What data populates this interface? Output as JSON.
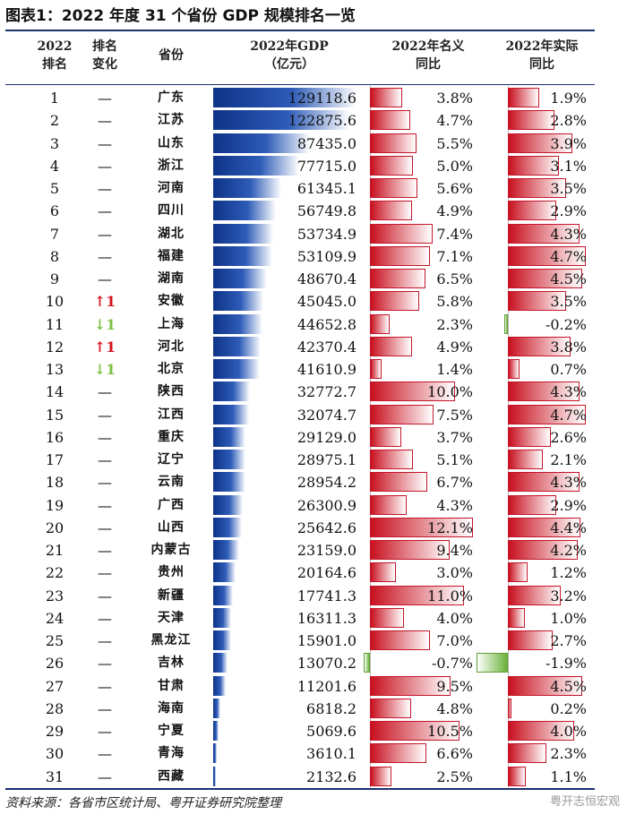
{
  "title": "图表1：2022 年度 31 个省份 GDP 规模排名一览",
  "headers": {
    "rank": [
      "2022",
      "排名"
    ],
    "change": [
      "排名",
      "变化"
    ],
    "province": "省份",
    "gdp": [
      "2022年GDP",
      "（亿元）"
    ],
    "nominal": [
      "2022年名义",
      "同比"
    ],
    "real": [
      "2022年实际",
      "同比"
    ]
  },
  "rows": [
    {
      "rank": "1",
      "change": "—",
      "dir": "none",
      "province": "广东",
      "gdp": "129118.6",
      "gdp_value": 129118.6,
      "nominal": "3.8%",
      "nominal_value": 3.8,
      "real": "1.9%",
      "real_value": 1.9
    },
    {
      "rank": "2",
      "change": "—",
      "dir": "none",
      "province": "江苏",
      "gdp": "122875.6",
      "gdp_value": 122875.6,
      "nominal": "4.7%",
      "nominal_value": 4.7,
      "real": "2.8%",
      "real_value": 2.8
    },
    {
      "rank": "3",
      "change": "—",
      "dir": "none",
      "province": "山东",
      "gdp": "87435.0",
      "gdp_value": 87435.0,
      "nominal": "5.5%",
      "nominal_value": 5.5,
      "real": "3.9%",
      "real_value": 3.9
    },
    {
      "rank": "4",
      "change": "—",
      "dir": "none",
      "province": "浙江",
      "gdp": "77715.0",
      "gdp_value": 77715.0,
      "nominal": "5.0%",
      "nominal_value": 5.0,
      "real": "3.1%",
      "real_value": 3.1
    },
    {
      "rank": "5",
      "change": "—",
      "dir": "none",
      "province": "河南",
      "gdp": "61345.1",
      "gdp_value": 61345.1,
      "nominal": "5.6%",
      "nominal_value": 5.6,
      "real": "3.5%",
      "real_value": 3.5
    },
    {
      "rank": "6",
      "change": "—",
      "dir": "none",
      "province": "四川",
      "gdp": "56749.8",
      "gdp_value": 56749.8,
      "nominal": "4.9%",
      "nominal_value": 4.9,
      "real": "2.9%",
      "real_value": 2.9
    },
    {
      "rank": "7",
      "change": "—",
      "dir": "none",
      "province": "湖北",
      "gdp": "53734.9",
      "gdp_value": 53734.9,
      "nominal": "7.4%",
      "nominal_value": 7.4,
      "real": "4.3%",
      "real_value": 4.3
    },
    {
      "rank": "8",
      "change": "—",
      "dir": "none",
      "province": "福建",
      "gdp": "53109.9",
      "gdp_value": 53109.9,
      "nominal": "7.1%",
      "nominal_value": 7.1,
      "real": "4.7%",
      "real_value": 4.7
    },
    {
      "rank": "9",
      "change": "—",
      "dir": "none",
      "province": "湖南",
      "gdp": "48670.4",
      "gdp_value": 48670.4,
      "nominal": "6.5%",
      "nominal_value": 6.5,
      "real": "4.5%",
      "real_value": 4.5
    },
    {
      "rank": "10",
      "change": "1",
      "dir": "up",
      "province": "安徽",
      "gdp": "45045.0",
      "gdp_value": 45045.0,
      "nominal": "5.8%",
      "nominal_value": 5.8,
      "real": "3.5%",
      "real_value": 3.5
    },
    {
      "rank": "11",
      "change": "1",
      "dir": "down",
      "province": "上海",
      "gdp": "44652.8",
      "gdp_value": 44652.8,
      "nominal": "2.3%",
      "nominal_value": 2.3,
      "real": "-0.2%",
      "real_value": -0.2
    },
    {
      "rank": "12",
      "change": "1",
      "dir": "up",
      "province": "河北",
      "gdp": "42370.4",
      "gdp_value": 42370.4,
      "nominal": "4.9%",
      "nominal_value": 4.9,
      "real": "3.8%",
      "real_value": 3.8
    },
    {
      "rank": "13",
      "change": "1",
      "dir": "down",
      "province": "北京",
      "gdp": "41610.9",
      "gdp_value": 41610.9,
      "nominal": "1.4%",
      "nominal_value": 1.4,
      "real": "0.7%",
      "real_value": 0.7
    },
    {
      "rank": "14",
      "change": "—",
      "dir": "none",
      "province": "陕西",
      "gdp": "32772.7",
      "gdp_value": 32772.7,
      "nominal": "10.0%",
      "nominal_value": 10.0,
      "real": "4.3%",
      "real_value": 4.3
    },
    {
      "rank": "15",
      "change": "—",
      "dir": "none",
      "province": "江西",
      "gdp": "32074.7",
      "gdp_value": 32074.7,
      "nominal": "7.5%",
      "nominal_value": 7.5,
      "real": "4.7%",
      "real_value": 4.7
    },
    {
      "rank": "16",
      "change": "—",
      "dir": "none",
      "province": "重庆",
      "gdp": "29129.0",
      "gdp_value": 29129.0,
      "nominal": "3.7%",
      "nominal_value": 3.7,
      "real": "2.6%",
      "real_value": 2.6
    },
    {
      "rank": "17",
      "change": "—",
      "dir": "none",
      "province": "辽宁",
      "gdp": "28975.1",
      "gdp_value": 28975.1,
      "nominal": "5.1%",
      "nominal_value": 5.1,
      "real": "2.1%",
      "real_value": 2.1
    },
    {
      "rank": "18",
      "change": "—",
      "dir": "none",
      "province": "云南",
      "gdp": "28954.2",
      "gdp_value": 28954.2,
      "nominal": "6.7%",
      "nominal_value": 6.7,
      "real": "4.3%",
      "real_value": 4.3
    },
    {
      "rank": "19",
      "change": "—",
      "dir": "none",
      "province": "广西",
      "gdp": "26300.9",
      "gdp_value": 26300.9,
      "nominal": "4.3%",
      "nominal_value": 4.3,
      "real": "2.9%",
      "real_value": 2.9
    },
    {
      "rank": "20",
      "change": "—",
      "dir": "none",
      "province": "山西",
      "gdp": "25642.6",
      "gdp_value": 25642.6,
      "nominal": "12.1%",
      "nominal_value": 12.1,
      "real": "4.4%",
      "real_value": 4.4
    },
    {
      "rank": "21",
      "change": "—",
      "dir": "none",
      "province": "内蒙古",
      "gdp": "23159.0",
      "gdp_value": 23159.0,
      "nominal": "9.4%",
      "nominal_value": 9.4,
      "real": "4.2%",
      "real_value": 4.2
    },
    {
      "rank": "22",
      "change": "—",
      "dir": "none",
      "province": "贵州",
      "gdp": "20164.6",
      "gdp_value": 20164.6,
      "nominal": "3.0%",
      "nominal_value": 3.0,
      "real": "1.2%",
      "real_value": 1.2
    },
    {
      "rank": "23",
      "change": "—",
      "dir": "none",
      "province": "新疆",
      "gdp": "17741.3",
      "gdp_value": 17741.3,
      "nominal": "11.0%",
      "nominal_value": 11.0,
      "real": "3.2%",
      "real_value": 3.2
    },
    {
      "rank": "24",
      "change": "—",
      "dir": "none",
      "province": "天津",
      "gdp": "16311.3",
      "gdp_value": 16311.3,
      "nominal": "4.0%",
      "nominal_value": 4.0,
      "real": "1.0%",
      "real_value": 1.0
    },
    {
      "rank": "25",
      "change": "—",
      "dir": "none",
      "province": "黑龙江",
      "gdp": "15901.0",
      "gdp_value": 15901.0,
      "nominal": "7.0%",
      "nominal_value": 7.0,
      "real": "2.7%",
      "real_value": 2.7
    },
    {
      "rank": "26",
      "change": "—",
      "dir": "none",
      "province": "吉林",
      "gdp": "13070.2",
      "gdp_value": 13070.2,
      "nominal": "-0.7%",
      "nominal_value": -0.7,
      "real": "-1.9%",
      "real_value": -1.9
    },
    {
      "rank": "27",
      "change": "—",
      "dir": "none",
      "province": "甘肃",
      "gdp": "11201.6",
      "gdp_value": 11201.6,
      "nominal": "9.5%",
      "nominal_value": 9.5,
      "real": "4.5%",
      "real_value": 4.5
    },
    {
      "rank": "28",
      "change": "—",
      "dir": "none",
      "province": "海南",
      "gdp": "6818.2",
      "gdp_value": 6818.2,
      "nominal": "4.8%",
      "nominal_value": 4.8,
      "real": "0.2%",
      "real_value": 0.2
    },
    {
      "rank": "29",
      "change": "—",
      "dir": "none",
      "province": "宁夏",
      "gdp": "5069.6",
      "gdp_value": 5069.6,
      "nominal": "10.5%",
      "nominal_value": 10.5,
      "real": "4.0%",
      "real_value": 4.0
    },
    {
      "rank": "30",
      "change": "—",
      "dir": "none",
      "province": "青海",
      "gdp": "3610.1",
      "gdp_value": 3610.1,
      "nominal": "6.6%",
      "nominal_value": 6.6,
      "real": "2.3%",
      "real_value": 2.3
    },
    {
      "rank": "31",
      "change": "—",
      "dir": "none",
      "province": "西藏",
      "gdp": "2132.6",
      "gdp_value": 2132.6,
      "nominal": "2.5%",
      "nominal_value": 2.5,
      "real": "1.1%",
      "real_value": 1.1
    }
  ],
  "source": "资料来源：各省市区统计局、粤开证券研究院整理",
  "watermark": "粤开志恒宏观",
  "colors": {
    "gdp_bar": "#0d3387",
    "positive_bar": "#c8101f",
    "negative_bar": "#6ab23a",
    "rank_up": "#d6131e",
    "rank_down": "#7bc043"
  }
}
